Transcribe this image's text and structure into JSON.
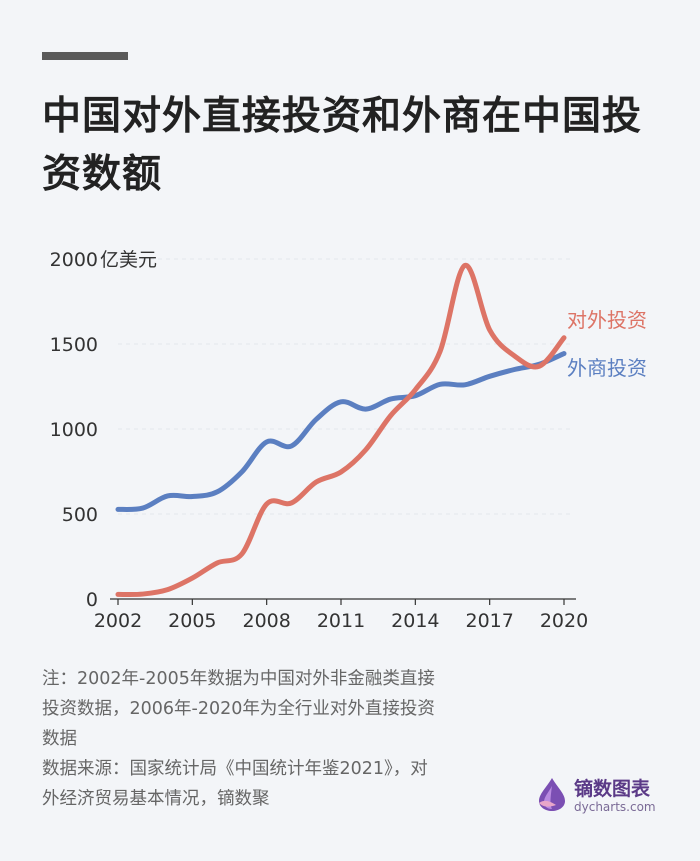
{
  "title": "中国对外直接投资和外商在中国投资数额",
  "notes": [
    "注：2002年-2005年数据为中国对外非金融类直接投资数据，2006年-2020年为全行业对外直接投资数据",
    "数据来源：国家统计局《中国统计年鉴2021》，对外经济贸易基本情况，镝数聚"
  ],
  "logo": {
    "name": "镝数图表",
    "site": "dycharts.com"
  },
  "colors": {
    "outward": "#dd7466",
    "foreign": "#5b7fc1",
    "grid": "#e3e6ec",
    "axis": "#333333"
  },
  "chart_data": {
    "type": "line",
    "title": "中国对外直接投资和外商在中国投资数额",
    "ylabel": "亿美元",
    "unit": "亿美元",
    "ylim": [
      0,
      2000
    ],
    "yticks": [
      0,
      500,
      1000,
      1500,
      2000
    ],
    "x": [
      2002,
      2003,
      2004,
      2005,
      2006,
      2007,
      2008,
      2009,
      2010,
      2011,
      2012,
      2013,
      2014,
      2015,
      2016,
      2017,
      2018,
      2019,
      2020
    ],
    "xticks": [
      2002,
      2005,
      2008,
      2011,
      2014,
      2017,
      2020
    ],
    "series": [
      {
        "name": "对外投资",
        "color": "#dd7466",
        "values": [
          27,
          29,
          55,
          123,
          212,
          265,
          559,
          565,
          688,
          747,
          878,
          1078,
          1231,
          1457,
          1962,
          1583,
          1430,
          1369,
          1537
        ]
      },
      {
        "name": "外商投资",
        "color": "#5b7fc1",
        "values": [
          527,
          535,
          606,
          603,
          630,
          748,
          924,
          900,
          1057,
          1160,
          1117,
          1176,
          1196,
          1263,
          1260,
          1310,
          1350,
          1381,
          1444
        ]
      }
    ]
  }
}
